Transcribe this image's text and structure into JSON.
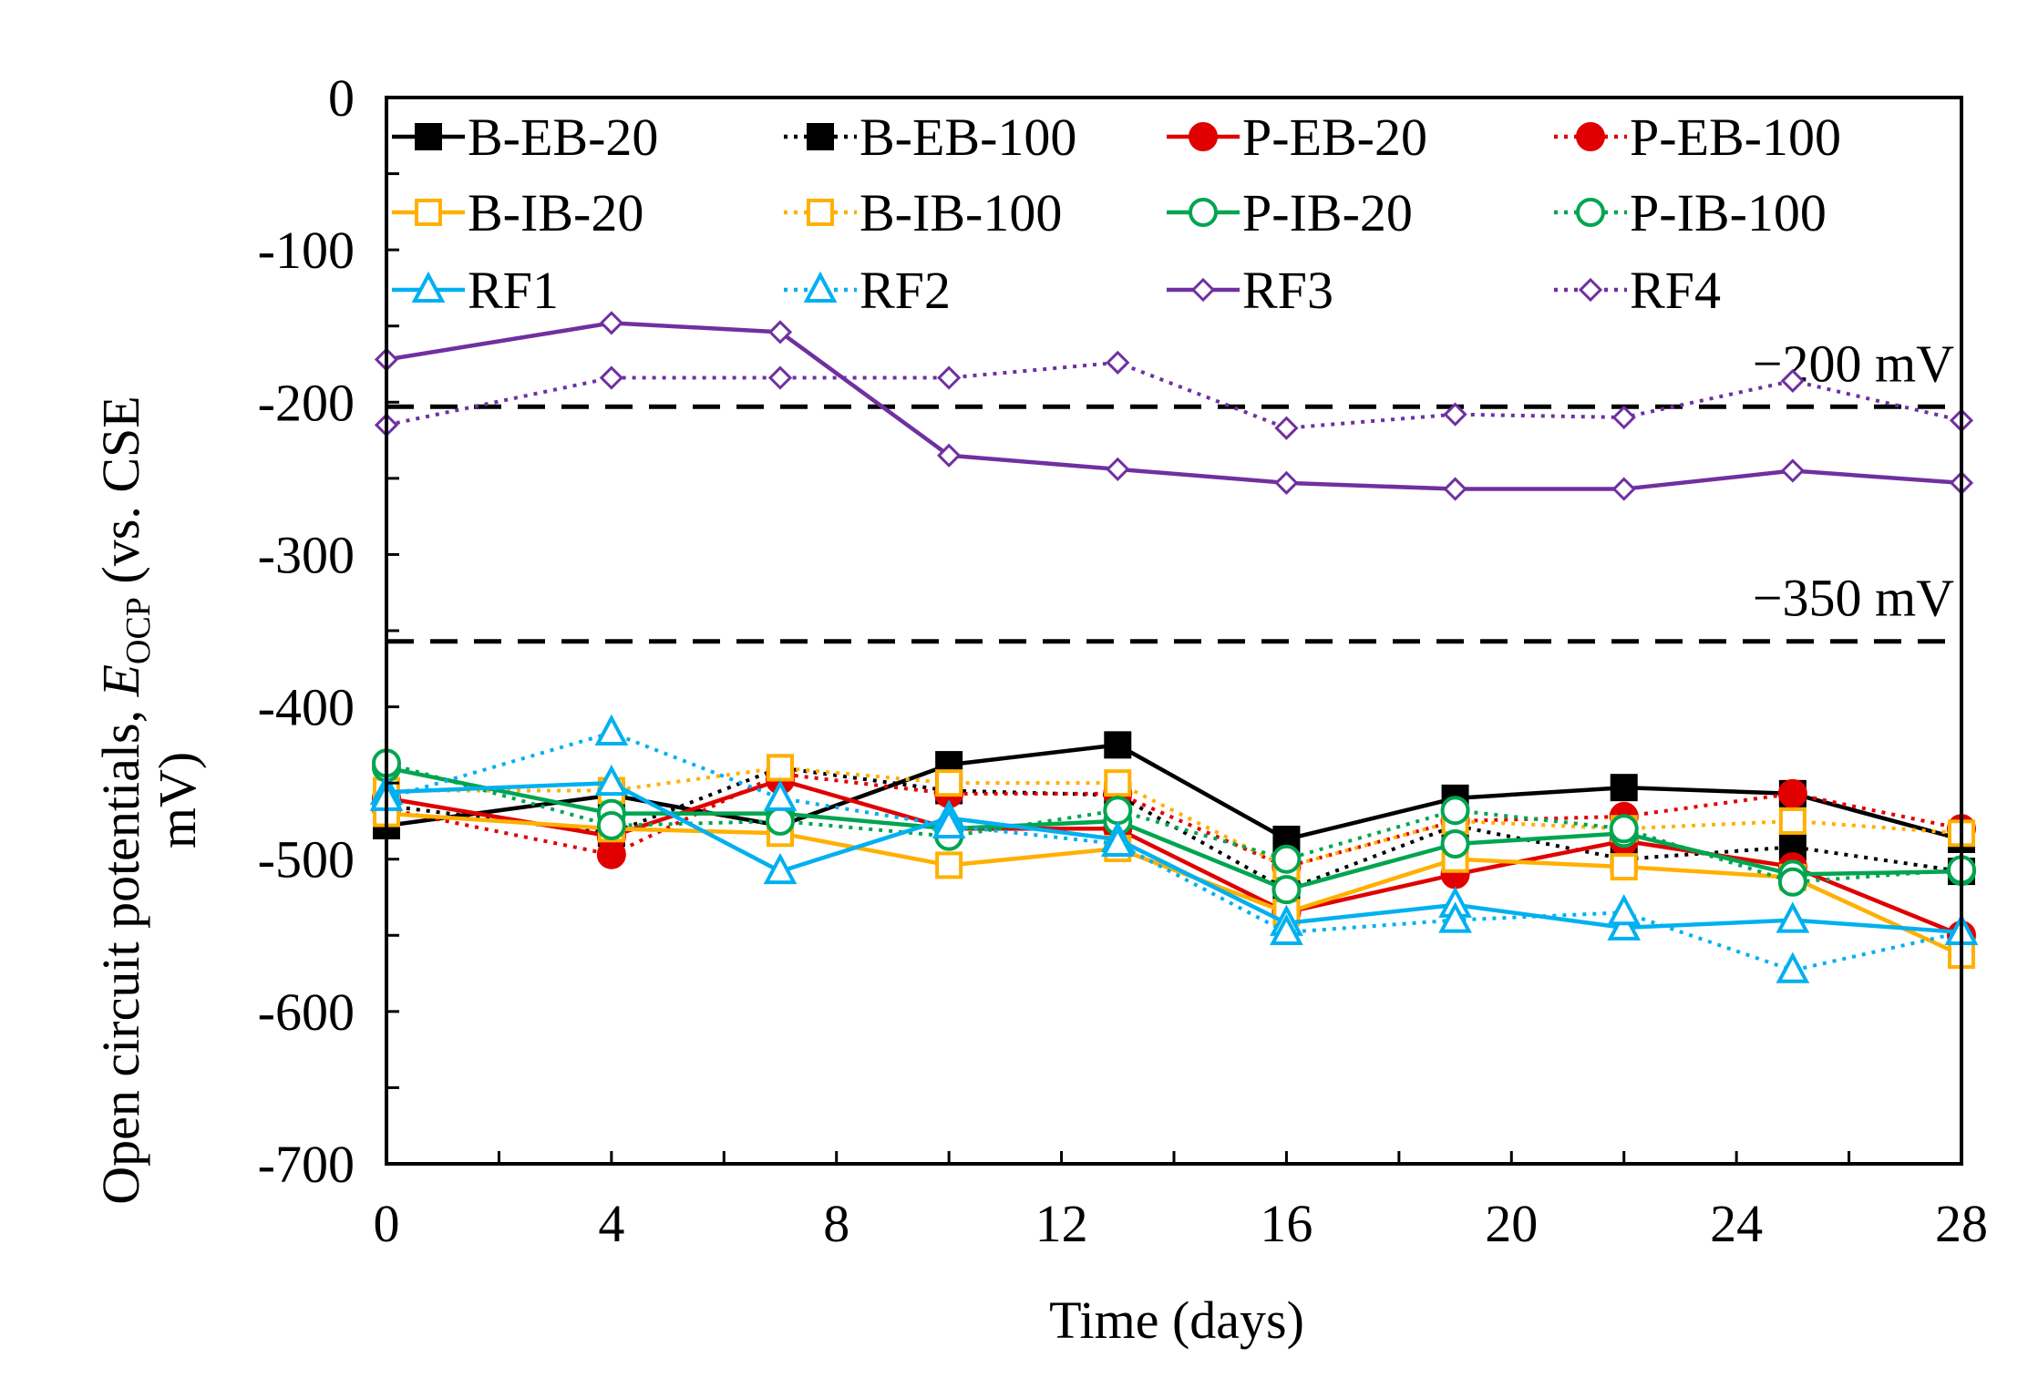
{
  "chart_data": {
    "type": "line",
    "title": "",
    "xlabel": "Time (days)",
    "ylabel_main": "Open circuit potentials, ",
    "ylabel_symbol": "E",
    "ylabel_subscript": "OCP",
    "ylabel_suffix": " (vs. CSE",
    "ylabel_line2": "mV)",
    "xlim": [
      0,
      28
    ],
    "ylim": [
      -700,
      0
    ],
    "x_ticks": [
      0,
      4,
      8,
      12,
      16,
      20,
      24,
      28
    ],
    "x_tick_labels": [
      "0",
      "4",
      "8",
      "12",
      "16",
      "20",
      "24",
      "28"
    ],
    "y_ticks": [
      0,
      -100,
      -200,
      -300,
      -400,
      -500,
      -600,
      -700
    ],
    "y_tick_labels": [
      "0",
      "-100",
      "-200",
      "-300",
      "-400",
      "-500",
      "-600",
      "-700"
    ],
    "x": [
      0,
      4,
      7,
      10,
      13,
      16,
      19,
      22,
      25,
      28
    ],
    "reference_lines": [
      {
        "value": -203,
        "label": "−200 mV"
      },
      {
        "value": -357,
        "label": "−350 mV"
      }
    ],
    "legend_position": "top",
    "series": [
      {
        "name": "B-EB-20",
        "color": "#000000",
        "marker": "square",
        "filled": true,
        "dash": "solid",
        "values": [
          -478,
          -458,
          -478,
          -438,
          -425,
          -487,
          -460,
          -453,
          -457,
          -487
        ]
      },
      {
        "name": "B-EB-100",
        "color": "#000000",
        "marker": "square",
        "filled": true,
        "dash": "dotted",
        "values": [
          -465,
          -483,
          -440,
          -455,
          -458,
          -520,
          -478,
          -500,
          -492,
          -508
        ]
      },
      {
        "name": "P-EB-20",
        "color": "#e00000",
        "marker": "circle",
        "filled": true,
        "dash": "solid",
        "values": [
          -460,
          -485,
          -448,
          -480,
          -480,
          -535,
          -510,
          -488,
          -505,
          -550
        ]
      },
      {
        "name": "P-EB-100",
        "color": "#e00000",
        "marker": "circle",
        "filled": true,
        "dash": "dotted",
        "values": [
          -467,
          -497,
          -444,
          -457,
          -457,
          -505,
          -475,
          -472,
          -457,
          -480
        ]
      },
      {
        "name": "B-IB-20",
        "color": "#ffb000",
        "marker": "square",
        "filled": false,
        "dash": "solid",
        "values": [
          -470,
          -480,
          -483,
          -504,
          -493,
          -535,
          -500,
          -505,
          -512,
          -563
        ]
      },
      {
        "name": "B-IB-100",
        "color": "#ffb000",
        "marker": "square",
        "filled": false,
        "dash": "dotted",
        "values": [
          -455,
          -455,
          -440,
          -450,
          -450,
          -505,
          -475,
          -480,
          -475,
          -483
        ]
      },
      {
        "name": "P-IB-20",
        "color": "#00a550",
        "marker": "circle",
        "filled": false,
        "dash": "solid",
        "values": [
          -440,
          -470,
          -470,
          -480,
          -475,
          -520,
          -490,
          -483,
          -510,
          -508
        ]
      },
      {
        "name": "P-IB-100",
        "color": "#00a550",
        "marker": "circle",
        "filled": false,
        "dash": "dotted",
        "values": [
          -437,
          -478,
          -475,
          -485,
          -468,
          -500,
          -468,
          -480,
          -515,
          -507
        ]
      },
      {
        "name": "RF1",
        "color": "#00b0f0",
        "marker": "triangle",
        "filled": false,
        "dash": "solid",
        "values": [
          -456,
          -450,
          -508,
          -473,
          -487,
          -542,
          -530,
          -545,
          -540,
          -548
        ]
      },
      {
        "name": "RF2",
        "color": "#00b0f0",
        "marker": "triangle",
        "filled": false,
        "dash": "dotted",
        "values": [
          -460,
          -417,
          -460,
          -478,
          -490,
          -548,
          -540,
          -535,
          -573,
          -548
        ]
      },
      {
        "name": "RF3",
        "color": "#7030a0",
        "marker": "diamond",
        "filled": false,
        "dash": "solid",
        "values": [
          -172,
          -148,
          -154,
          -235,
          -244,
          -253,
          -257,
          -257,
          -245,
          -253
        ]
      },
      {
        "name": "RF4",
        "color": "#7030a0",
        "marker": "diamond",
        "filled": false,
        "dash": "dotted",
        "values": [
          -215,
          -184,
          -184,
          -184,
          -174,
          -217,
          -208,
          -210,
          -186,
          -212
        ]
      }
    ]
  }
}
